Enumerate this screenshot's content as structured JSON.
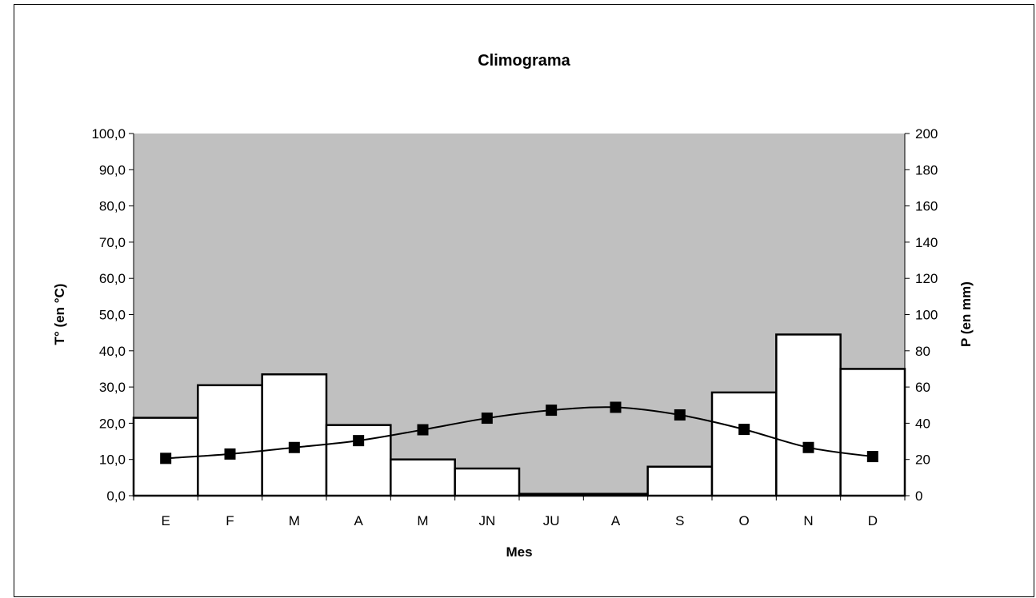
{
  "chart_data": {
    "type": "bar",
    "title": "Climograma",
    "xlabel": "Mes",
    "ylabel_left": "T° (en °C)",
    "ylabel_right": "P (en mm)",
    "categories": [
      "E",
      "F",
      "M",
      "A",
      "M",
      "JN",
      "JU",
      "A",
      "S",
      "O",
      "N",
      "D"
    ],
    "precipitation_mm": [
      43,
      61,
      67,
      39,
      20,
      15,
      1,
      1,
      16,
      57,
      89,
      70
    ],
    "temperature_c": [
      10.3,
      11.5,
      13.3,
      15.2,
      18.2,
      21.4,
      23.6,
      24.4,
      22.3,
      18.3,
      13.3,
      10.8
    ],
    "ylim_left": [
      0,
      100
    ],
    "ylim_right": [
      0,
      200
    ],
    "left_ticks": [
      "0,0",
      "10,0",
      "20,0",
      "30,0",
      "40,0",
      "50,0",
      "60,0",
      "70,0",
      "80,0",
      "90,0",
      "100,0"
    ],
    "right_ticks": [
      "0",
      "20",
      "40",
      "60",
      "80",
      "100",
      "120",
      "140",
      "160",
      "180",
      "200"
    ],
    "grid": false,
    "legend": "none",
    "colors": {
      "plot_background": "#c0c0c0",
      "bar_fill": "#ffffff",
      "bar_stroke": "#000000",
      "line": "#000000",
      "marker": "#000000"
    }
  }
}
